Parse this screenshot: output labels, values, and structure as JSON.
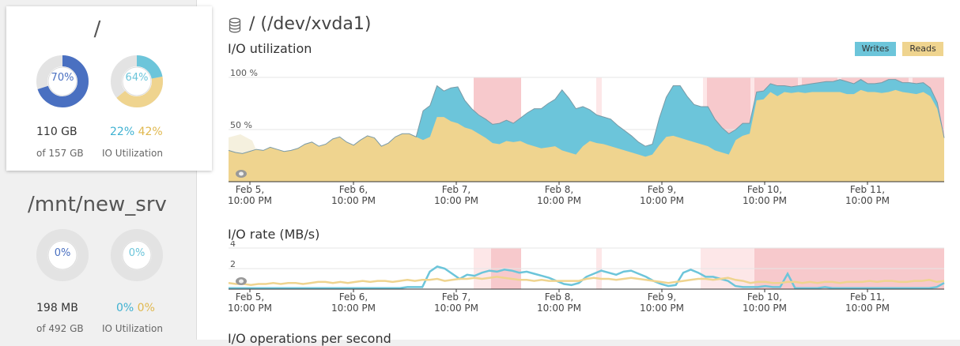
{
  "disks": [
    {
      "title": "/",
      "donut1_label": "70%",
      "donut1_value": 70,
      "donut2_label": "64%",
      "donut2_value": 64,
      "donut2_writes": 22,
      "donut2_reads": 42,
      "used": "110 GB",
      "total": "of 157 GB",
      "io_writes": "22%",
      "io_reads": "42%",
      "io_label": "IO Utilization"
    },
    {
      "title": "/mnt/new_srv",
      "donut1_label": "0%",
      "donut1_value": 0,
      "donut2_label": "0%",
      "donut2_value": 0,
      "donut2_writes": 0,
      "donut2_reads": 0,
      "used": "198 MB",
      "total": "of 492 GB",
      "io_writes": "0%",
      "io_reads": "0%",
      "io_label": "IO Utilization"
    }
  ],
  "main": {
    "title": "/ (/dev/xvda1)",
    "icon": "database-icon",
    "legend": {
      "writes": "Writes",
      "reads": "Reads"
    },
    "sections": {
      "io_util": "I/O utilization",
      "io_rate": "I/O rate (MB/s)",
      "io_ops": "I/O operations per second"
    }
  },
  "colors": {
    "writes": "#6cc5da",
    "reads": "#efd48f",
    "primary": "#4a70c1",
    "alert": "#f7c9cc",
    "alert_light": "#fde7e8"
  },
  "chart_data": [
    {
      "type": "area",
      "title": "I/O utilization",
      "y_ticks": [
        "100 %",
        "50 %"
      ],
      "ylim": [
        0,
        100
      ],
      "x_ticks": [
        [
          "Feb 5,",
          "10:00 PM"
        ],
        [
          "Feb 6,",
          "10:00 PM"
        ],
        [
          "Feb 7,",
          "10:00 PM"
        ],
        [
          "Feb 8,",
          "10:00 PM"
        ],
        [
          "Feb 9,",
          "10:00 PM"
        ],
        [
          "Feb 10,",
          "10:00 PM"
        ],
        [
          "Feb 11,",
          "10:00 PM"
        ]
      ],
      "series": [
        {
          "name": "Reads",
          "values": [
            30,
            28,
            27,
            29,
            31,
            30,
            33,
            31,
            29,
            30,
            32,
            36,
            38,
            34,
            36,
            41,
            43,
            38,
            35,
            40,
            44,
            42,
            34,
            37,
            43,
            46,
            46,
            43,
            40,
            43,
            62,
            62,
            58,
            56,
            52,
            50,
            46,
            42,
            37,
            36,
            39,
            38,
            39,
            36,
            34,
            32,
            33,
            34,
            30,
            28,
            26,
            34,
            39,
            37,
            36,
            34,
            32,
            30,
            28,
            26,
            24,
            26,
            35,
            43,
            44,
            42,
            40,
            38,
            36,
            34,
            30,
            28,
            26,
            40,
            44,
            46,
            78,
            79,
            86,
            82,
            86,
            85,
            86,
            85,
            86,
            86,
            86,
            86,
            86,
            84,
            84,
            88,
            86,
            86,
            85,
            86,
            88,
            86,
            85,
            84,
            86,
            82,
            70,
            42
          ]
        },
        {
          "name": "Writes",
          "values": [
            0,
            0,
            0,
            0,
            0,
            0,
            0,
            0,
            0,
            0,
            0,
            0,
            0,
            0,
            0,
            0,
            0,
            0,
            0,
            0,
            0,
            0,
            0,
            0,
            0,
            0,
            0,
            0,
            28,
            30,
            30,
            25,
            32,
            35,
            26,
            20,
            18,
            18,
            18,
            20,
            20,
            18,
            22,
            30,
            36,
            38,
            42,
            45,
            58,
            52,
            44,
            38,
            30,
            27,
            26,
            26,
            22,
            19,
            16,
            12,
            10,
            10,
            26,
            38,
            48,
            50,
            42,
            36,
            36,
            38,
            30,
            24,
            20,
            10,
            12,
            10,
            8,
            8,
            8,
            10,
            6,
            6,
            6,
            8,
            8,
            9,
            10,
            10,
            12,
            12,
            10,
            10,
            8,
            8,
            10,
            12,
            10,
            9,
            10,
            10,
            9,
            8,
            6,
            0
          ]
        }
      ]
    },
    {
      "type": "line",
      "title": "I/O rate (MB/s)",
      "y_ticks": [
        "4",
        "2"
      ],
      "ylim": [
        0,
        4
      ],
      "x_ticks": [
        [
          "Feb 5,",
          "10:00 PM"
        ],
        [
          "Feb 6,",
          "10:00 PM"
        ],
        [
          "Feb 7,",
          "10:00 PM"
        ],
        [
          "Feb 8,",
          "10:00 PM"
        ],
        [
          "Feb 9,",
          "10:00 PM"
        ],
        [
          "Feb 10,",
          "10:00 PM"
        ],
        [
          "Feb 11,",
          "10:00 PM"
        ]
      ],
      "series": [
        {
          "name": "Writes",
          "values": [
            0.1,
            0.1,
            0.1,
            0.1,
            0.1,
            0.1,
            0.1,
            0.1,
            0.1,
            0.1,
            0.1,
            0.1,
            0.1,
            0.1,
            0.1,
            0.1,
            0.1,
            0.1,
            0.1,
            0.1,
            0.1,
            0.1,
            0.1,
            0.1,
            0.2,
            0.2,
            0.2,
            1.7,
            2.2,
            2.0,
            1.5,
            1.0,
            1.4,
            1.3,
            1.6,
            1.8,
            1.7,
            1.9,
            1.8,
            1.6,
            1.7,
            1.5,
            1.3,
            1.1,
            0.8,
            0.5,
            0.4,
            0.6,
            1.2,
            1.5,
            1.8,
            1.6,
            1.4,
            1.7,
            1.8,
            1.5,
            1.2,
            0.8,
            0.5,
            0.3,
            0.4,
            1.6,
            1.9,
            1.6,
            1.2,
            1.2,
            1.0,
            0.8,
            0.3,
            0.2,
            0.2,
            0.2,
            0.3,
            0.2,
            0.2,
            1.5,
            0.1,
            0.1,
            0.1,
            0.1,
            0.2,
            0.1,
            0.1,
            0.1,
            0.1,
            0.1,
            0.1,
            0.1,
            0.1,
            0.1,
            0.1,
            0.1,
            0.1,
            0.1,
            0.1,
            0.2,
            0.6
          ]
        },
        {
          "name": "Reads",
          "values": [
            0.6,
            0.5,
            0.5,
            0.4,
            0.5,
            0.5,
            0.6,
            0.5,
            0.6,
            0.6,
            0.5,
            0.6,
            0.7,
            0.7,
            0.6,
            0.7,
            0.6,
            0.7,
            0.8,
            0.7,
            0.8,
            0.8,
            0.7,
            0.8,
            0.9,
            0.8,
            0.9,
            0.9,
            1.0,
            0.8,
            0.9,
            1.0,
            1.0,
            1.1,
            1.0,
            1.1,
            1.2,
            1.1,
            1.0,
            0.9,
            0.9,
            0.8,
            0.9,
            0.8,
            0.8,
            0.8,
            0.8,
            0.8,
            1.0,
            1.1,
            1.0,
            1.0,
            0.9,
            1.0,
            1.1,
            1.0,
            0.9,
            0.8,
            0.7,
            0.6,
            0.7,
            0.8,
            0.9,
            1.0,
            1.0,
            0.9,
            1.0,
            1.1,
            0.9,
            0.8,
            0.6,
            0.7,
            0.7,
            0.6,
            0.6,
            0.7,
            0.7,
            0.6,
            0.7,
            0.6,
            0.7,
            0.7,
            0.6,
            0.7,
            0.7,
            0.7,
            0.8,
            0.7,
            0.8,
            0.8,
            0.7,
            0.7,
            0.8,
            0.8,
            0.9,
            0.7,
            0.8
          ]
        }
      ]
    }
  ]
}
